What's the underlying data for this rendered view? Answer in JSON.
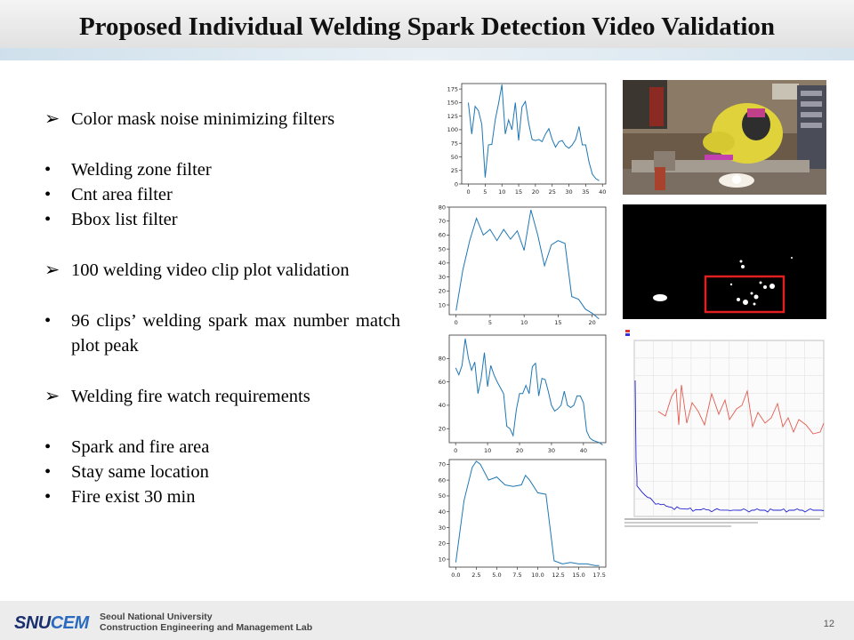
{
  "title": "Proposed Individual Welding Spark Detection Video Validation",
  "bullets": [
    {
      "marker": "➢",
      "text": "Color mask noise minimizing  filters"
    },
    {
      "marker": "gap"
    },
    {
      "marker": "•",
      "text": "Welding zone filter"
    },
    {
      "marker": "•",
      "text": "Cnt area filter"
    },
    {
      "marker": "•",
      "text": "Bbox list filter"
    },
    {
      "marker": "gap"
    },
    {
      "marker": "➢",
      "text": "100 welding video clip plot validation"
    },
    {
      "marker": "gap"
    },
    {
      "marker": "•",
      "text": "96 clips’ welding spark max number match plot peak"
    },
    {
      "marker": "gap"
    },
    {
      "marker": "➢",
      "text": "Welding fire watch requirements"
    },
    {
      "marker": "gap"
    },
    {
      "marker": "•",
      "text": "Spark and fire area"
    },
    {
      "marker": "•",
      "text": "Stay same location"
    },
    {
      "marker": "•",
      "text": "Fire exist 30 min"
    }
  ],
  "chart_data": [
    {
      "type": "line",
      "color": "#1f77b4",
      "x": [
        0,
        1,
        2,
        3,
        4,
        5,
        6,
        7,
        8,
        9,
        10,
        11,
        12,
        13,
        14,
        15,
        16,
        17,
        18,
        19,
        20,
        21,
        22,
        23,
        24,
        25,
        26,
        27,
        28,
        29,
        30,
        31,
        32,
        33,
        34,
        35,
        36,
        37,
        38,
        39
      ],
      "y": [
        150,
        92,
        143,
        135,
        110,
        12,
        72,
        73,
        118,
        148,
        183,
        92,
        118,
        100,
        150,
        80,
        142,
        152,
        112,
        82,
        80,
        82,
        78,
        92,
        102,
        82,
        68,
        78,
        80,
        70,
        66,
        72,
        82,
        106,
        72,
        72,
        40,
        18,
        10,
        6
      ],
      "xlim": [
        -2,
        41
      ],
      "ylim": [
        0,
        185
      ],
      "xticks": [
        0,
        5,
        10,
        15,
        20,
        25,
        30,
        35,
        40
      ],
      "yticks": [
        0,
        25,
        50,
        75,
        100,
        125,
        150,
        175
      ]
    },
    {
      "type": "line",
      "color": "#1f77b4",
      "x": [
        0,
        1,
        2,
        3,
        4,
        5,
        6,
        7,
        8,
        9,
        10,
        11,
        12,
        13,
        14,
        15,
        16,
        17,
        18,
        19,
        20,
        21
      ],
      "y": [
        6,
        35,
        56,
        72,
        60,
        64,
        56,
        64,
        57,
        63,
        49,
        78,
        60,
        38,
        53,
        56,
        54,
        16,
        14,
        7,
        4,
        0
      ],
      "xlim": [
        -1,
        22
      ],
      "ylim": [
        3,
        80
      ],
      "xticks": [
        0,
        5,
        10,
        15,
        20
      ],
      "yticks": [
        10,
        20,
        30,
        40,
        50,
        60,
        70,
        80
      ]
    },
    {
      "type": "line",
      "color": "#1f77b4",
      "x": [
        0,
        1,
        2,
        3,
        4,
        5,
        6,
        7,
        8,
        9,
        10,
        11,
        12,
        13,
        14,
        15,
        16,
        17,
        18,
        19,
        20,
        21,
        22,
        23,
        24,
        25,
        26,
        27,
        28,
        29,
        30,
        31,
        32,
        33,
        34,
        35,
        36,
        37,
        38,
        39,
        40,
        41,
        42,
        43,
        44,
        45,
        46
      ],
      "y": [
        72,
        66,
        74,
        97,
        80,
        70,
        77,
        50,
        63,
        85,
        56,
        74,
        66,
        60,
        55,
        50,
        22,
        20,
        14,
        36,
        50,
        50,
        57,
        50,
        73,
        76,
        48,
        63,
        62,
        52,
        40,
        35,
        37,
        40,
        52,
        40,
        38,
        40,
        48,
        48,
        42,
        18,
        12,
        10,
        9,
        8,
        6
      ],
      "xlim": [
        -2,
        47
      ],
      "ylim": [
        8,
        100
      ],
      "xticks": [
        0,
        10,
        20,
        30,
        40
      ],
      "yticks": [
        20,
        40,
        60,
        80
      ]
    },
    {
      "type": "line",
      "color": "#1f77b4",
      "x": [
        0,
        1,
        2,
        2.5,
        3,
        4,
        5,
        6,
        7,
        8,
        8.5,
        9,
        10,
        11,
        12,
        13,
        14,
        15,
        16,
        17,
        17.5
      ],
      "y": [
        8,
        47,
        68,
        72,
        70,
        60,
        62,
        57,
        56,
        57,
        63,
        60,
        52,
        51,
        9,
        7,
        8,
        7,
        7,
        6,
        6
      ],
      "xlim": [
        -0.8,
        18.3
      ],
      "ylim": [
        5,
        73
      ],
      "xticks": [
        0.0,
        2.5,
        5.0,
        7.5,
        10.0,
        12.5,
        15.0,
        17.5
      ],
      "yticks": [
        10,
        20,
        30,
        40,
        50,
        60,
        70
      ]
    }
  ],
  "footer": {
    "logo_snu": "SNU",
    "logo_cem": "CEM",
    "lab_line1": "Seoul National University",
    "lab_line2": "Construction Engineering and Management Lab",
    "page_number": "12"
  }
}
